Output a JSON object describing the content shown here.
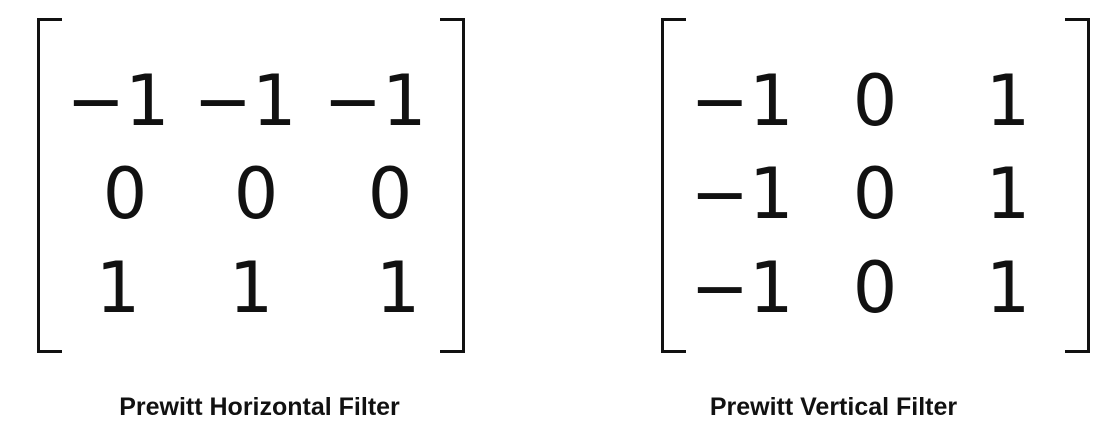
{
  "filters": [
    {
      "caption": "Prewitt Horizontal Filter",
      "matrix": [
        [
          "−1",
          "−1",
          "−1"
        ],
        [
          "0",
          "0",
          "0"
        ],
        [
          "1",
          "1",
          "1"
        ]
      ]
    },
    {
      "caption": "Prewitt Vertical Filter",
      "matrix": [
        [
          "−1",
          "0",
          "1"
        ],
        [
          "−1",
          "0",
          "1"
        ],
        [
          "−1",
          "0",
          "1"
        ]
      ]
    }
  ]
}
